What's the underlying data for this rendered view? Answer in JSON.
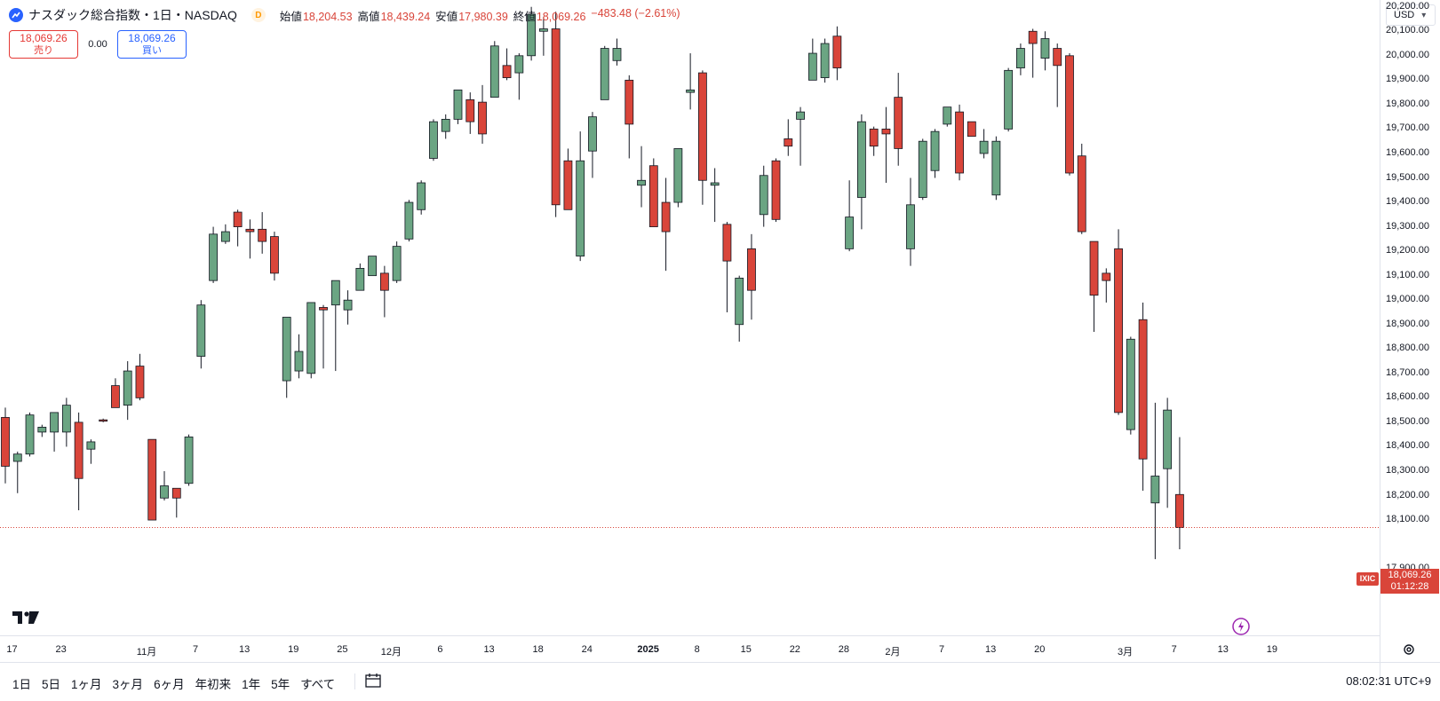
{
  "header": {
    "symbol_title": "ナスダック総合指数・1日・NASDAQ",
    "badge": "D",
    "ohlc": {
      "open_label": "始値",
      "open": "18,204.53",
      "high_label": "高値",
      "high": "18,439.24",
      "low_label": "安値",
      "low": "17,980.39",
      "close_label": "終値",
      "close": "18,069.26",
      "change": "−483.48 (−2.61%)"
    }
  },
  "trade": {
    "sell_price": "18,069.26",
    "sell_label": "売り",
    "spread": "0.00",
    "buy_price": "18,069.26",
    "buy_label": "買い"
  },
  "currency_button": {
    "label": "USD"
  },
  "price_axis": {
    "ticks": [
      "20,200.00",
      "20,100.00",
      "20,000.00",
      "19,900.00",
      "19,800.00",
      "19,700.00",
      "19,600.00",
      "19,500.00",
      "19,400.00",
      "19,300.00",
      "19,200.00",
      "19,100.00",
      "19,000.00",
      "18,900.00",
      "18,800.00",
      "18,700.00",
      "18,600.00",
      "18,500.00",
      "18,400.00",
      "18,300.00",
      "18,200.00",
      "18,100.00",
      "17,900.00"
    ],
    "tick_values": [
      20200,
      20100,
      20000,
      19900,
      19800,
      19700,
      19600,
      19500,
      19400,
      19300,
      19200,
      19100,
      19000,
      18900,
      18800,
      18700,
      18600,
      18500,
      18400,
      18300,
      18200,
      18100,
      17900
    ],
    "last_price_tag": {
      "symbol": "IXIC",
      "price": "18,069.26",
      "countdown": "01:12:28",
      "value": 18069.26
    }
  },
  "time_axis": {
    "ticks": [
      {
        "label": "17",
        "i": 2
      },
      {
        "label": "23",
        "i": 6
      },
      {
        "label": "11月",
        "i": 13
      },
      {
        "label": "7",
        "i": 17
      },
      {
        "label": "13",
        "i": 21
      },
      {
        "label": "19",
        "i": 25
      },
      {
        "label": "25",
        "i": 29
      },
      {
        "label": "12月",
        "i": 33
      },
      {
        "label": "6",
        "i": 37
      },
      {
        "label": "13",
        "i": 41
      },
      {
        "label": "18",
        "i": 45
      },
      {
        "label": "24",
        "i": 49
      },
      {
        "label": "2025",
        "i": 54,
        "bold": true
      },
      {
        "label": "8",
        "i": 58
      },
      {
        "label": "15",
        "i": 62
      },
      {
        "label": "22",
        "i": 66
      },
      {
        "label": "28",
        "i": 70
      },
      {
        "label": "2月",
        "i": 74
      },
      {
        "label": "7",
        "i": 78
      },
      {
        "label": "13",
        "i": 82
      },
      {
        "label": "20",
        "i": 86
      },
      {
        "label": "3月",
        "i": 93
      },
      {
        "label": "7",
        "i": 97
      },
      {
        "label": "13",
        "i": 101
      },
      {
        "label": "19",
        "i": 105
      }
    ]
  },
  "range_buttons": [
    "1日",
    "5日",
    "1ヶ月",
    "3ヶ月",
    "6ヶ月",
    "年初来",
    "1年",
    "5年",
    "すべて"
  ],
  "clock": "08:02:31 UTC+9",
  "colors": {
    "up": "#6ba583",
    "down": "#d9453a",
    "wick": "#131722"
  },
  "icons": {
    "logo": "nasdaq-logo-icon",
    "calendar": "calendar-range-icon",
    "gear": "settings-icon",
    "bolt": "lightning-icon",
    "tv": "tradingview-logo-icon"
  },
  "chart_data": {
    "type": "candlestick",
    "title": "ナスダック総合指数・1日・NASDAQ",
    "ylim": [
      17850,
      20230
    ],
    "candles": [
      {
        "o": 18520,
        "h": 18560,
        "l": 18250,
        "c": 18320
      },
      {
        "o": 18340,
        "h": 18380,
        "l": 18210,
        "c": 18370
      },
      {
        "o": 18370,
        "h": 18540,
        "l": 18360,
        "c": 18530
      },
      {
        "o": 18460,
        "h": 18490,
        "l": 18440,
        "c": 18480
      },
      {
        "o": 18460,
        "h": 18540,
        "l": 18380,
        "c": 18540
      },
      {
        "o": 18460,
        "h": 18600,
        "l": 18400,
        "c": 18570
      },
      {
        "o": 18500,
        "h": 18540,
        "l": 18140,
        "c": 18270
      },
      {
        "o": 18390,
        "h": 18430,
        "l": 18330,
        "c": 18420
      },
      {
        "o": 18510,
        "h": 18515,
        "l": 18500,
        "c": 18505
      },
      {
        "o": 18650,
        "h": 18680,
        "l": 18580,
        "c": 18560
      },
      {
        "o": 18570,
        "h": 18750,
        "l": 18510,
        "c": 18710
      },
      {
        "o": 18730,
        "h": 18780,
        "l": 18590,
        "c": 18600
      },
      {
        "o": 18430,
        "h": 18430,
        "l": 18100,
        "c": 18100
      },
      {
        "o": 18190,
        "h": 18300,
        "l": 18180,
        "c": 18240
      },
      {
        "o": 18230,
        "h": 18230,
        "l": 18110,
        "c": 18190
      },
      {
        "o": 18250,
        "h": 18450,
        "l": 18240,
        "c": 18440
      },
      {
        "o": 18770,
        "h": 19000,
        "l": 18720,
        "c": 18980
      },
      {
        "o": 19080,
        "h": 19300,
        "l": 19070,
        "c": 19270
      },
      {
        "o": 19240,
        "h": 19310,
        "l": 19230,
        "c": 19280
      },
      {
        "o": 19360,
        "h": 19370,
        "l": 19220,
        "c": 19300
      },
      {
        "o": 19290,
        "h": 19330,
        "l": 19170,
        "c": 19280
      },
      {
        "o": 19290,
        "h": 19360,
        "l": 19190,
        "c": 19240
      },
      {
        "o": 19260,
        "h": 19280,
        "l": 19080,
        "c": 19110
      },
      {
        "o": 18670,
        "h": 18930,
        "l": 18600,
        "c": 18930
      },
      {
        "o": 18710,
        "h": 18860,
        "l": 18680,
        "c": 18790
      },
      {
        "o": 18700,
        "h": 18990,
        "l": 18680,
        "c": 18990
      },
      {
        "o": 18970,
        "h": 18980,
        "l": 18720,
        "c": 18960
      },
      {
        "o": 18980,
        "h": 19080,
        "l": 18710,
        "c": 19080
      },
      {
        "o": 18960,
        "h": 19040,
        "l": 18900,
        "c": 19000
      },
      {
        "o": 19040,
        "h": 19150,
        "l": 19040,
        "c": 19130
      },
      {
        "o": 19100,
        "h": 19180,
        "l": 19110,
        "c": 19180
      },
      {
        "o": 19110,
        "h": 19140,
        "l": 18930,
        "c": 19040
      },
      {
        "o": 19080,
        "h": 19240,
        "l": 19070,
        "c": 19220
      },
      {
        "o": 19250,
        "h": 19410,
        "l": 19240,
        "c": 19400
      },
      {
        "o": 19370,
        "h": 19490,
        "l": 19350,
        "c": 19480
      },
      {
        "o": 19580,
        "h": 19740,
        "l": 19570,
        "c": 19730
      },
      {
        "o": 19690,
        "h": 19760,
        "l": 19660,
        "c": 19740
      },
      {
        "o": 19740,
        "h": 19860,
        "l": 19720,
        "c": 19860
      },
      {
        "o": 19820,
        "h": 19850,
        "l": 19680,
        "c": 19730
      },
      {
        "o": 19810,
        "h": 19880,
        "l": 19640,
        "c": 19680
      },
      {
        "o": 19830,
        "h": 20060,
        "l": 19830,
        "c": 20040
      },
      {
        "o": 19960,
        "h": 20030,
        "l": 19900,
        "c": 19910
      },
      {
        "o": 19930,
        "h": 20010,
        "l": 19820,
        "c": 20000
      },
      {
        "o": 20000,
        "h": 20200,
        "l": 19980,
        "c": 20170
      },
      {
        "o": 20100,
        "h": 20160,
        "l": 20000,
        "c": 20110
      },
      {
        "o": 20110,
        "h": 20180,
        "l": 19340,
        "c": 19390
      },
      {
        "o": 19570,
        "h": 19620,
        "l": 19370,
        "c": 19370
      },
      {
        "o": 19180,
        "h": 19690,
        "l": 19160,
        "c": 19570
      },
      {
        "o": 19610,
        "h": 19770,
        "l": 19500,
        "c": 19750
      },
      {
        "o": 19820,
        "h": 20040,
        "l": 19820,
        "c": 20030
      },
      {
        "o": 19980,
        "h": 20070,
        "l": 19960,
        "c": 20030
      },
      {
        "o": 19900,
        "h": 19920,
        "l": 19580,
        "c": 19720
      },
      {
        "o": 19470,
        "h": 19630,
        "l": 19380,
        "c": 19490
      },
      {
        "o": 19550,
        "h": 19580,
        "l": 19310,
        "c": 19300
      },
      {
        "o": 19400,
        "h": 19500,
        "l": 19120,
        "c": 19280
      },
      {
        "o": 19400,
        "h": 19620,
        "l": 19380,
        "c": 19620
      },
      {
        "o": 19850,
        "h": 20010,
        "l": 19780,
        "c": 19860
      },
      {
        "o": 19930,
        "h": 19940,
        "l": 19390,
        "c": 19490
      },
      {
        "o": 19470,
        "h": 19540,
        "l": 19320,
        "c": 19480
      },
      {
        "o": 19310,
        "h": 19320,
        "l": 18950,
        "c": 19160
      },
      {
        "o": 18900,
        "h": 19100,
        "l": 18830,
        "c": 19090
      },
      {
        "o": 19210,
        "h": 19270,
        "l": 18920,
        "c": 19040
      },
      {
        "o": 19350,
        "h": 19550,
        "l": 19300,
        "c": 19510
      },
      {
        "o": 19570,
        "h": 19580,
        "l": 19320,
        "c": 19330
      },
      {
        "o": 19660,
        "h": 19740,
        "l": 19590,
        "c": 19630
      },
      {
        "o": 19740,
        "h": 19790,
        "l": 19550,
        "c": 19770
      },
      {
        "o": 19900,
        "h": 20070,
        "l": 19900,
        "c": 20010
      },
      {
        "o": 19910,
        "h": 20070,
        "l": 19890,
        "c": 20050
      },
      {
        "o": 20080,
        "h": 20120,
        "l": 19900,
        "c": 19950
      },
      {
        "o": 19210,
        "h": 19490,
        "l": 19200,
        "c": 19340
      },
      {
        "o": 19420,
        "h": 19760,
        "l": 19290,
        "c": 19730
      },
      {
        "o": 19700,
        "h": 19710,
        "l": 19590,
        "c": 19630
      },
      {
        "o": 19700,
        "h": 19790,
        "l": 19480,
        "c": 19680
      },
      {
        "o": 19830,
        "h": 19930,
        "l": 19550,
        "c": 19620
      },
      {
        "o": 19210,
        "h": 19500,
        "l": 19140,
        "c": 19390
      },
      {
        "o": 19420,
        "h": 19660,
        "l": 19410,
        "c": 19650
      },
      {
        "o": 19530,
        "h": 19700,
        "l": 19500,
        "c": 19690
      },
      {
        "o": 19720,
        "h": 19790,
        "l": 19710,
        "c": 19790
      },
      {
        "o": 19770,
        "h": 19800,
        "l": 19490,
        "c": 19520
      },
      {
        "o": 19730,
        "h": 19730,
        "l": 19670,
        "c": 19670
      },
      {
        "o": 19600,
        "h": 19700,
        "l": 19580,
        "c": 19650
      },
      {
        "o": 19430,
        "h": 19670,
        "l": 19410,
        "c": 19650
      },
      {
        "o": 19700,
        "h": 19950,
        "l": 19690,
        "c": 19940
      },
      {
        "o": 19950,
        "h": 20050,
        "l": 19920,
        "c": 20030
      },
      {
        "o": 20100,
        "h": 20110,
        "l": 19910,
        "c": 20050
      },
      {
        "o": 19990,
        "h": 20100,
        "l": 19940,
        "c": 20070
      },
      {
        "o": 20030,
        "h": 20050,
        "l": 19790,
        "c": 19960
      },
      {
        "o": 20000,
        "h": 20010,
        "l": 19510,
        "c": 19520
      },
      {
        "o": 19590,
        "h": 19640,
        "l": 19270,
        "c": 19280
      },
      {
        "o": 19240,
        "h": 19240,
        "l": 18870,
        "c": 19020
      },
      {
        "o": 19110,
        "h": 19130,
        "l": 18990,
        "c": 19080
      },
      {
        "o": 19210,
        "h": 19290,
        "l": 18530,
        "c": 18540
      },
      {
        "o": 18470,
        "h": 18850,
        "l": 18450,
        "c": 18840
      },
      {
        "o": 18920,
        "h": 18990,
        "l": 18220,
        "c": 18350
      },
      {
        "o": 18170,
        "h": 18580,
        "l": 17940,
        "c": 18280
      },
      {
        "o": 18310,
        "h": 18600,
        "l": 18150,
        "c": 18550
      },
      {
        "o": 18204.53,
        "h": 18439.24,
        "l": 17980.39,
        "c": 18069.26
      }
    ]
  }
}
